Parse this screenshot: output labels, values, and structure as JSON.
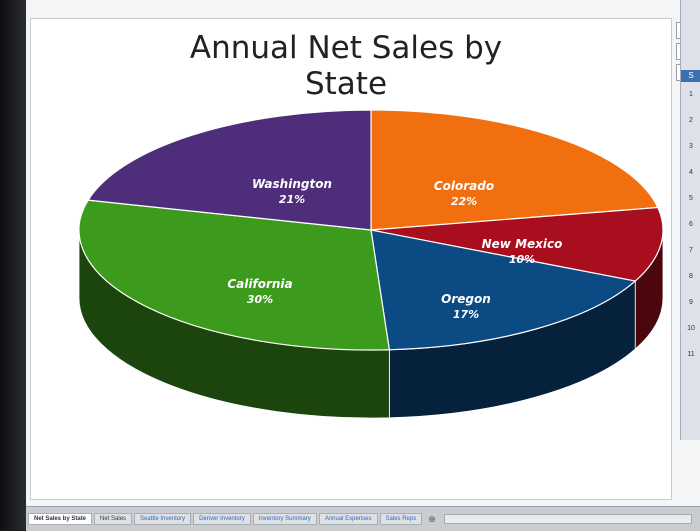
{
  "chart_data": {
    "type": "pie",
    "title": "Annual Net Sales by State",
    "slices": [
      {
        "label": "Colorado",
        "value": 22,
        "display": "22%",
        "color": "#f26f10"
      },
      {
        "label": "New Mexico",
        "value": 10,
        "display": "10%",
        "color": "#a80e1e"
      },
      {
        "label": "Oregon",
        "value": 17,
        "display": "17%",
        "color": "#0b4a82"
      },
      {
        "label": "California",
        "value": 30,
        "display": "30%",
        "color": "#3c9a1c"
      },
      {
        "label": "Washington",
        "value": 21,
        "display": "21%",
        "color": "#4e2d7a"
      }
    ],
    "style": "3d",
    "legend": "none"
  },
  "tools": [
    "+",
    "✎",
    "▼"
  ],
  "tabs": [
    {
      "label": "Net Sales by State",
      "active": true
    },
    {
      "label": "Net Sales",
      "active": false
    },
    {
      "label": "Seattle Inventory",
      "active": false
    },
    {
      "label": "Denver Inventory",
      "active": false
    },
    {
      "label": "Inventory Summary",
      "active": false
    },
    {
      "label": "Annual Expenses",
      "active": false
    },
    {
      "label": "Sales Reps",
      "active": false
    }
  ],
  "side_rows": [
    "1",
    "2",
    "3",
    "4",
    "5",
    "6",
    "7",
    "8",
    "9",
    "10",
    "11"
  ]
}
